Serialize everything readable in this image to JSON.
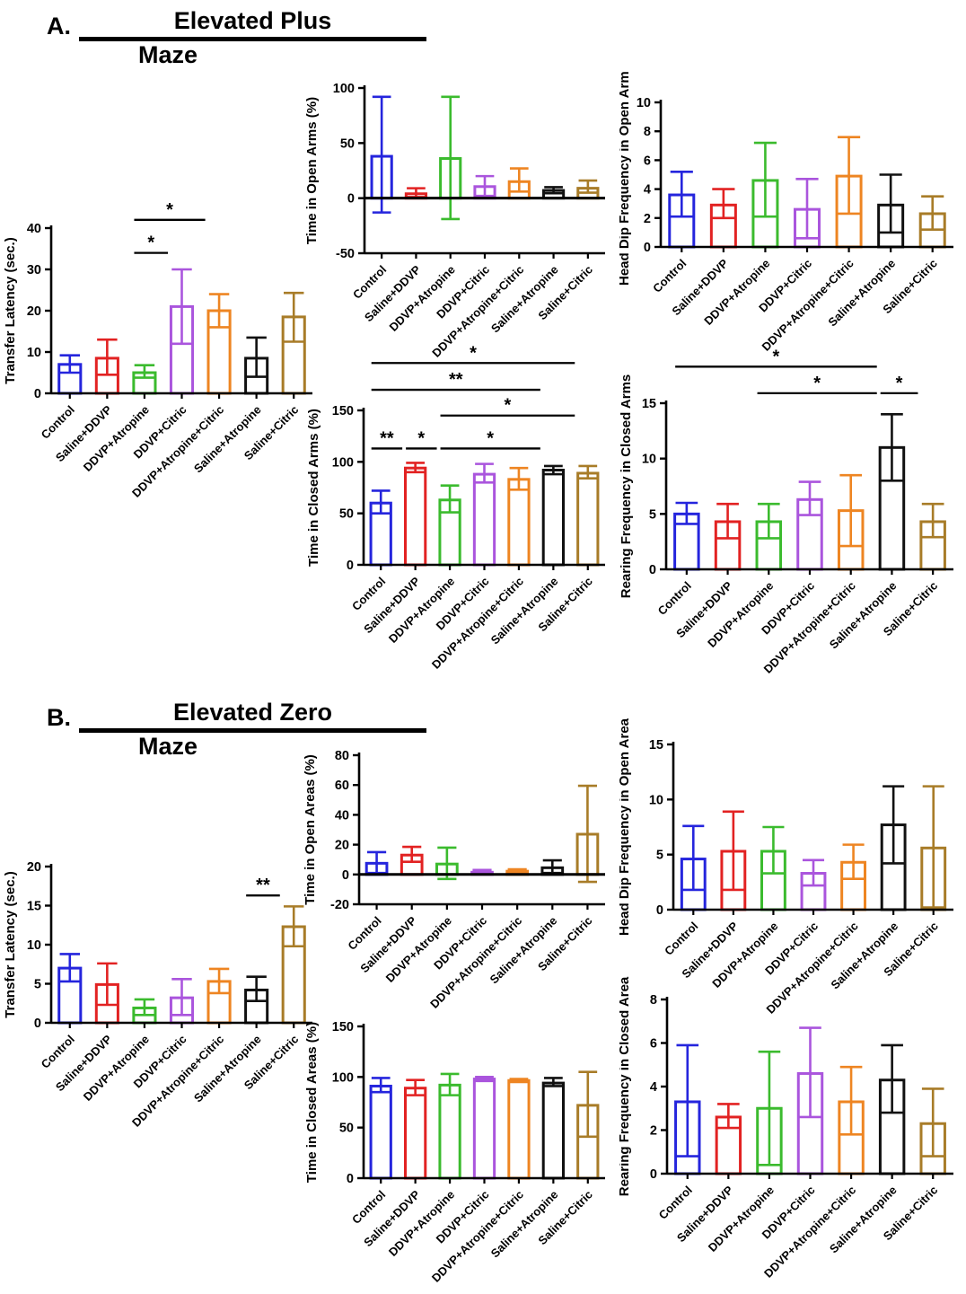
{
  "panels": [
    {
      "label": "A.",
      "title_line1": "Elevated Plus",
      "title_line2": "Maze"
    },
    {
      "label": "B.",
      "title_line1": "Elevated Zero",
      "title_line2": "Maze"
    }
  ],
  "categories": [
    "Control",
    "Saline+DDVP",
    "DDVP+Atropine",
    "DDVP+Citric",
    "DDVP+Atropine+Citric",
    "Saline+Atropine",
    "Saline+Citric"
  ],
  "bar_colors": [
    "#2525dd",
    "#e22222",
    "#3bbb2e",
    "#aa55dd",
    "#ee8522",
    "#111111",
    "#a87c28"
  ],
  "chart_data": [
    {
      "id": "a_transfer_latency",
      "type": "bar",
      "panel": "A",
      "ylabel": "Transfer Latency (sec.)",
      "ymin": 0,
      "ymax": 40,
      "yticks": [
        0,
        10,
        20,
        30,
        40
      ],
      "values": [
        7.0,
        8.5,
        5.0,
        21.0,
        20.0,
        8.5,
        18.5
      ],
      "err_low": [
        5.0,
        4.5,
        3.8,
        12.0,
        16.0,
        4.0,
        12.5
      ],
      "err_high": [
        9.2,
        13.0,
        6.8,
        30.0,
        24.0,
        13.5,
        24.3
      ],
      "significance": [
        {
          "from": "DDVP+Atropine",
          "to": "DDVP+Citric",
          "label": "*",
          "y": 34
        },
        {
          "from": "DDVP+Atropine",
          "to": "DDVP+Atropine+Citric",
          "label": "*",
          "y": 42
        }
      ]
    },
    {
      "id": "a_time_open_arms",
      "type": "bar",
      "panel": "A",
      "ylabel": "Time in Open Arms (%)",
      "ymin": -50,
      "ymax": 100,
      "yticks": [
        -50,
        0,
        50,
        100
      ],
      "values": [
        38,
        4,
        36,
        10.5,
        15,
        7,
        9
      ],
      "err_low": [
        -13,
        1,
        -19,
        2,
        6,
        4.5,
        5
      ],
      "err_high": [
        92,
        9,
        92,
        20,
        27,
        10,
        16
      ],
      "significance": []
    },
    {
      "id": "a_head_dip_open_arms",
      "type": "bar",
      "panel": "A",
      "ylabel": "Head Dip Frequency in Open Arms",
      "ymin": 0,
      "ymax": 10,
      "yticks": [
        0,
        2,
        4,
        6,
        8,
        10
      ],
      "values": [
        3.6,
        2.9,
        4.6,
        2.6,
        4.9,
        2.9,
        2.3
      ],
      "err_low": [
        2.1,
        2.0,
        2.1,
        0.6,
        2.3,
        1.0,
        1.2
      ],
      "err_high": [
        5.2,
        4.0,
        7.2,
        4.7,
        7.6,
        5.0,
        3.5
      ],
      "significance": []
    },
    {
      "id": "a_time_closed_arms",
      "type": "bar",
      "panel": "A",
      "ylabel": "Time in Closed Arms (%)",
      "ymin": 0,
      "ymax": 150,
      "yticks": [
        0,
        50,
        100,
        150
      ],
      "values": [
        60,
        94,
        63,
        88,
        83,
        92,
        89
      ],
      "err_low": [
        50,
        90,
        51,
        80,
        73,
        88,
        84
      ],
      "err_high": [
        72,
        99,
        77,
        98,
        94,
        96,
        96
      ],
      "significance": [
        {
          "from": "Control",
          "to": "Saline+DDVP",
          "label": "**",
          "y": 113
        },
        {
          "from": "Saline+DDVP",
          "to": "DDVP+Atropine",
          "label": "*",
          "y": 113
        },
        {
          "from": "DDVP+Atropine",
          "to": "Saline+Atropine",
          "label": "*",
          "y": 113
        },
        {
          "from": "DDVP+Atropine",
          "to": "Saline+Citric",
          "label": "*",
          "y": 145
        },
        {
          "from": "Control",
          "to": "Saline+Atropine",
          "label": "**",
          "y": 170
        },
        {
          "from": "Control",
          "to": "Saline+Citric",
          "label": "*",
          "y": 196
        }
      ]
    },
    {
      "id": "a_rearing_closed_arms",
      "type": "bar",
      "panel": "A",
      "ylabel": "Rearing Frequency in Closed Arms",
      "ymin": 0,
      "ymax": 15,
      "yticks": [
        0,
        5,
        10,
        15
      ],
      "values": [
        5.0,
        4.3,
        4.3,
        6.3,
        5.3,
        11.0,
        4.3
      ],
      "err_low": [
        4.1,
        2.8,
        2.8,
        4.9,
        2.1,
        8.0,
        2.9
      ],
      "err_high": [
        6.0,
        5.9,
        5.9,
        7.9,
        8.5,
        14.0,
        5.9
      ],
      "significance": [
        {
          "from": "Control",
          "to": "Saline+Atropine",
          "label": "*",
          "y": 18.3
        },
        {
          "from": "DDVP+Atropine",
          "to": "Saline+Atropine",
          "label": "*",
          "y": 15.9
        },
        {
          "from": "Saline+Atropine",
          "to": "Saline+Citric",
          "label": "*",
          "y": 15.9
        }
      ]
    },
    {
      "id": "b_transfer_latency",
      "type": "bar",
      "panel": "B",
      "ylabel": "Transfer Latency (sec.)",
      "ymin": 0,
      "ymax": 20,
      "yticks": [
        0,
        5,
        10,
        15,
        20
      ],
      "values": [
        7.0,
        4.9,
        1.9,
        3.2,
        5.3,
        4.2,
        12.3
      ],
      "err_low": [
        5.3,
        2.3,
        1.0,
        1.0,
        3.8,
        2.8,
        9.8
      ],
      "err_high": [
        8.8,
        7.6,
        3.0,
        5.6,
        6.9,
        5.9,
        14.9
      ],
      "significance": [
        {
          "from": "Saline+Atropine",
          "to": "Saline+Citric",
          "label": "**",
          "y": 16.3
        }
      ]
    },
    {
      "id": "b_time_open_areas",
      "type": "bar",
      "panel": "B",
      "ylabel": "Time in Open Areas (%)",
      "ymin": -20,
      "ymax": 80,
      "yticks": [
        -20,
        0,
        20,
        40,
        60,
        80
      ],
      "values": [
        7.5,
        13,
        7,
        1.5,
        2.2,
        4.5,
        27
      ],
      "err_low": [
        1,
        8.5,
        -3,
        0.5,
        1.2,
        1,
        -5
      ],
      "err_high": [
        15,
        18.5,
        18,
        3,
        3.5,
        9.5,
        59.5
      ],
      "significance": []
    },
    {
      "id": "b_head_dip_open_area",
      "type": "bar",
      "panel": "B",
      "ylabel": "Head Dip Frequency in Open Area",
      "ymin": 0,
      "ymax": 15,
      "yticks": [
        0,
        5,
        10,
        15
      ],
      "values": [
        4.6,
        5.3,
        5.3,
        3.3,
        4.3,
        7.7,
        5.6
      ],
      "err_low": [
        1.8,
        1.8,
        3.3,
        2.2,
        2.8,
        4.2,
        0.2
      ],
      "err_high": [
        7.6,
        8.9,
        7.5,
        4.5,
        5.9,
        11.2,
        11.2
      ],
      "significance": []
    },
    {
      "id": "b_time_closed_areas",
      "type": "bar",
      "panel": "B",
      "ylabel": "Time in Closed Areas (%)",
      "ymin": 0,
      "ymax": 150,
      "yticks": [
        0,
        50,
        100,
        150
      ],
      "values": [
        91,
        89,
        92,
        98,
        96.5,
        94,
        72
      ],
      "err_low": [
        85,
        82,
        82,
        96,
        95,
        91,
        41
      ],
      "err_high": [
        99,
        97,
        103,
        100,
        98,
        99,
        105
      ],
      "significance": []
    },
    {
      "id": "b_rearing_closed_area",
      "type": "bar",
      "panel": "B",
      "ylabel": "Rearing Frequency in Closed Area",
      "ymin": 0,
      "ymax": 8,
      "yticks": [
        0,
        2,
        4,
        6,
        8
      ],
      "values": [
        3.3,
        2.6,
        3.0,
        4.6,
        3.3,
        4.3,
        2.3
      ],
      "err_low": [
        0.8,
        2.1,
        0.4,
        2.6,
        1.8,
        2.8,
        0.8
      ],
      "err_high": [
        5.9,
        3.2,
        5.6,
        6.7,
        4.9,
        5.9,
        3.9
      ],
      "significance": []
    }
  ]
}
